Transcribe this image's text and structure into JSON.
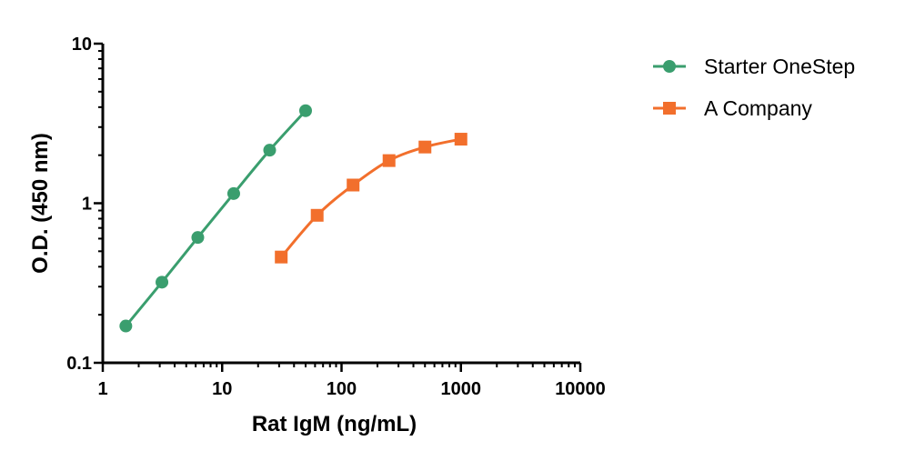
{
  "chart_data": {
    "type": "line",
    "xlabel": "Rat IgM (ng/mL)",
    "ylabel": "O.D. (450 nm)",
    "xscale": "log",
    "yscale": "log",
    "xlim": [
      1,
      10000
    ],
    "ylim": [
      0.1,
      10
    ],
    "xticks": [
      {
        "value": 1,
        "label": "1"
      },
      {
        "value": 10,
        "label": "10"
      },
      {
        "value": 100,
        "label": "100"
      },
      {
        "value": 1000,
        "label": "1000"
      },
      {
        "value": 10000,
        "label": "10000"
      }
    ],
    "yticks": [
      {
        "value": 0.1,
        "label": "0.1"
      },
      {
        "value": 1,
        "label": "1"
      },
      {
        "value": 10,
        "label": "10"
      }
    ],
    "grid": false,
    "legend_position": "top-right",
    "series": [
      {
        "name": "Starter OneStep",
        "color": "#3a9e6e",
        "marker": "circle",
        "x": [
          1.56,
          3.13,
          6.25,
          12.5,
          25,
          50
        ],
        "y": [
          0.17,
          0.32,
          0.61,
          1.15,
          2.15,
          3.8
        ]
      },
      {
        "name": "A Company",
        "color": "#f26f2c",
        "marker": "square",
        "x": [
          31.25,
          62.5,
          125,
          250,
          500,
          1000
        ],
        "y": [
          0.46,
          0.84,
          1.3,
          1.85,
          2.25,
          2.52
        ]
      }
    ]
  }
}
